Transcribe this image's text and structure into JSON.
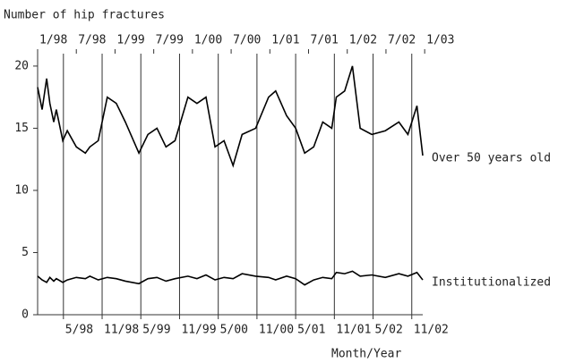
{
  "chart_data": {
    "type": "line",
    "ylabel": "Number of hip fractures",
    "xlabel": "Month/Year",
    "x": [
      0,
      0.7,
      1.4,
      1.9,
      2.5,
      2.9,
      3.9,
      4.6,
      6.0,
      7.4,
      8.1,
      9.4,
      10.8,
      12.2,
      13.6,
      15.7,
      17.1,
      18.5,
      19.9,
      21.3,
      23.3,
      24.7,
      26.1,
      27.5,
      28.9,
      30.3,
      31.7,
      33.8,
      35.8,
      36.9,
      38.6,
      40.0,
      41.4,
      42.8,
      44.2,
      45.6,
      46.3,
      47.6,
      48.8,
      50.0,
      51.8,
      53.9,
      56.0,
      57.4,
      58.8,
      59.7
    ],
    "series": [
      {
        "name": "Over 50 years old",
        "color": "#000000",
        "values": [
          18.3,
          16.5,
          19,
          17,
          15.5,
          16.5,
          14,
          14.8,
          13.5,
          13,
          13.5,
          14,
          17.5,
          17,
          15.5,
          13,
          14.5,
          15,
          13.5,
          14,
          17.5,
          17,
          17.5,
          13.5,
          14,
          12,
          14.5,
          15,
          17.5,
          18,
          16,
          15,
          13,
          13.5,
          15.5,
          15,
          17.5,
          18,
          20,
          15,
          14.5,
          14.8,
          15.5,
          14.5,
          16.8,
          12.8
        ]
      },
      {
        "name": "Institutionalized",
        "color": "#000000",
        "values": [
          3.1,
          2.8,
          2.6,
          3.0,
          2.7,
          2.9,
          2.6,
          2.8,
          3.0,
          2.9,
          3.1,
          2.8,
          3.0,
          2.9,
          2.7,
          2.5,
          2.9,
          3.0,
          2.7,
          2.9,
          3.1,
          2.9,
          3.2,
          2.8,
          3.0,
          2.9,
          3.3,
          3.1,
          3.0,
          2.8,
          3.1,
          2.9,
          2.4,
          2.8,
          3.0,
          2.9,
          3.4,
          3.3,
          3.5,
          3.1,
          3.2,
          3.0,
          3.3,
          3.1,
          3.4,
          2.8
        ]
      }
    ],
    "xlim": [
      0,
      59.7
    ],
    "ylim": [
      0,
      21
    ],
    "yticks": [
      0,
      5,
      10,
      15,
      20
    ],
    "xticks_top": [
      {
        "value": 0,
        "label": "1/98"
      },
      {
        "value": 6,
        "label": "7/98"
      },
      {
        "value": 12,
        "label": "1/99"
      },
      {
        "value": 18,
        "label": "7/99"
      },
      {
        "value": 24,
        "label": "1/00"
      },
      {
        "value": 30,
        "label": "7/00"
      },
      {
        "value": 36,
        "label": "1/01"
      },
      {
        "value": 42,
        "label": "7/01"
      },
      {
        "value": 48,
        "label": "1/02"
      },
      {
        "value": 54,
        "label": "7/02"
      },
      {
        "value": 60,
        "label": "1/03"
      }
    ],
    "xticks": [
      {
        "value": 4,
        "label": "5/98"
      },
      {
        "value": 10,
        "label": "11/98"
      },
      {
        "value": 16,
        "label": "5/99"
      },
      {
        "value": 22,
        "label": "11/99"
      },
      {
        "value": 28,
        "label": "5/00"
      },
      {
        "value": 34,
        "label": "11/00"
      },
      {
        "value": 40,
        "label": "5/01"
      },
      {
        "value": 46,
        "label": "11/01"
      },
      {
        "value": 52,
        "label": "5/02"
      },
      {
        "value": 58,
        "label": "11/02"
      }
    ],
    "grid": true
  }
}
